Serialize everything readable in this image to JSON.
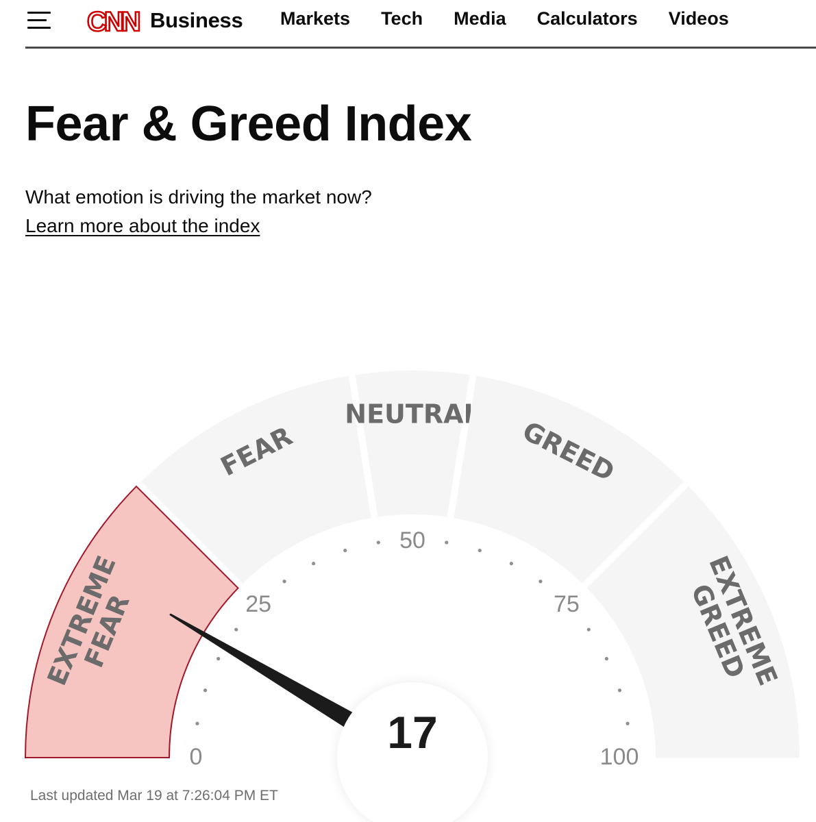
{
  "nav": {
    "logo_text": "CNN",
    "section": "Business",
    "links": [
      "Markets",
      "Tech",
      "Media",
      "Calculators",
      "Videos"
    ],
    "brand_color": "#cc0000"
  },
  "page": {
    "title": "Fear & Greed Index",
    "subtitle": "What emotion is driving the market now?",
    "learn_more": "Learn more about the index"
  },
  "gauge": {
    "value": 17,
    "value_text": "17",
    "min": 0,
    "max": 100,
    "tick_labels": [
      "0",
      "25",
      "50",
      "75",
      "100"
    ],
    "segments": [
      {
        "label": [
          "EXTREME",
          "FEAR"
        ],
        "from": 0,
        "to": 25,
        "active": true
      },
      {
        "label": [
          "FEAR"
        ],
        "from": 25,
        "to": 45,
        "active": false
      },
      {
        "label": [
          "NEUTRAL"
        ],
        "from": 45,
        "to": 55,
        "active": false
      },
      {
        "label": [
          "GREED"
        ],
        "from": 55,
        "to": 75,
        "active": false
      },
      {
        "label": [
          "EXTREME",
          "GREED"
        ],
        "from": 75,
        "to": 100,
        "active": false
      }
    ],
    "active_fill": "#f6c5c1",
    "active_stroke": "#a0192a",
    "inactive_fill": "#f5f5f5",
    "needle_color": "#1b1b1b"
  },
  "last_updated": "Last updated Mar 19 at 7:26:04 PM ET"
}
